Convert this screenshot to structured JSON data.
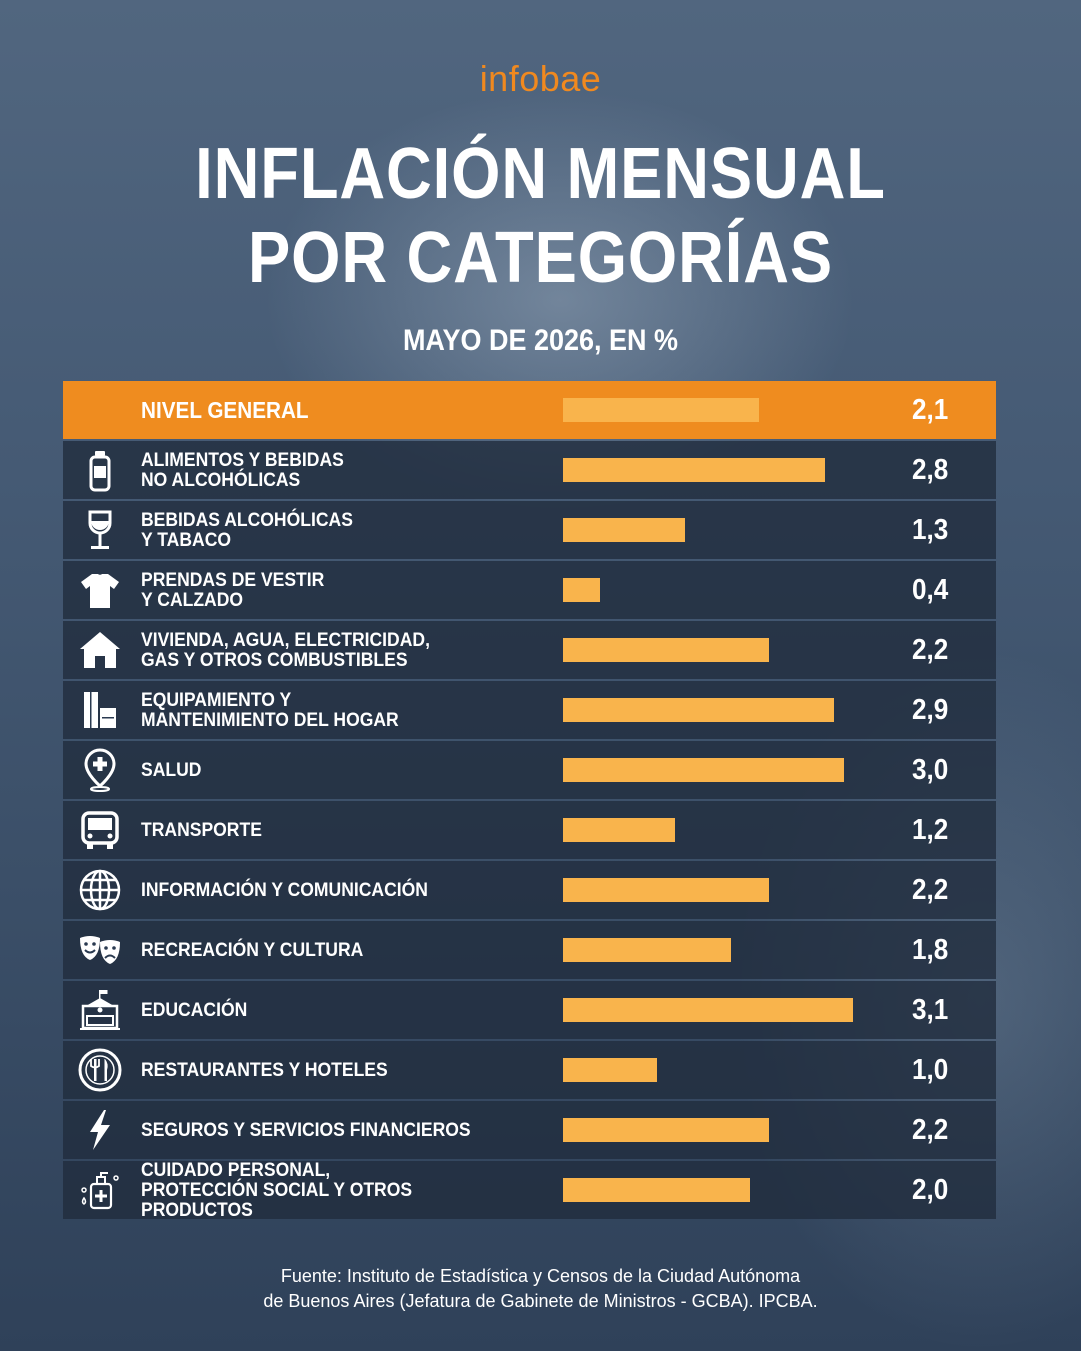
{
  "brand": "infobae",
  "title_line1": "INFLACIÓN MENSUAL",
  "title_line2": "POR CATEGORÍAS",
  "subtitle": "MAYO DE 2026, EN %",
  "source_line1": "Fuente: Instituto de Estadística y Censos de la Ciudad Autónoma",
  "source_line2": "de Buenos Aires (Jefatura de Gabinete de Ministros - GCBA). IPCBA.",
  "colors": {
    "accent": "#ef8c1f",
    "bar": "#f9b44c",
    "row_bg": "#202b3c",
    "text": "#ffffff"
  },
  "chart_data": {
    "type": "bar",
    "orientation": "horizontal",
    "title": "INFLACIÓN MENSUAL POR CATEGORÍAS",
    "subtitle": "MAYO DE 2026, EN %",
    "xlim": [
      0,
      3.1
    ],
    "categories": [
      {
        "lines": [
          "NIVEL GENERAL"
        ],
        "value": 2.1,
        "display": "2,1",
        "icon": "none",
        "highlight": true
      },
      {
        "lines": [
          "ALIMENTOS Y BEBIDAS",
          "NO ALCOHÓLICAS"
        ],
        "value": 2.8,
        "display": "2,8",
        "icon": "bottle-icon"
      },
      {
        "lines": [
          "BEBIDAS ALCOHÓLICAS",
          "Y TABACO"
        ],
        "value": 1.3,
        "display": "1,3",
        "icon": "wine-glass-icon"
      },
      {
        "lines": [
          "PRENDAS DE VESTIR",
          "Y CALZADO"
        ],
        "value": 0.4,
        "display": "0,4",
        "icon": "tshirt-icon"
      },
      {
        "lines": [
          "VIVIENDA, AGUA, ELECTRICIDAD,",
          "GAS Y OTROS COMBUSTIBLES"
        ],
        "value": 2.2,
        "display": "2,2",
        "icon": "house-icon"
      },
      {
        "lines": [
          "EQUIPAMIENTO Y",
          "MANTENIMIENTO DEL HOGAR"
        ],
        "value": 2.9,
        "display": "2,9",
        "icon": "furniture-icon"
      },
      {
        "lines": [
          "SALUD"
        ],
        "value": 3.0,
        "display": "3,0",
        "icon": "health-pin-icon"
      },
      {
        "lines": [
          "TRANSPORTE"
        ],
        "value": 1.2,
        "display": "1,2",
        "icon": "bus-icon"
      },
      {
        "lines": [
          "INFORMACIÓN Y COMUNICACIÓN"
        ],
        "value": 2.2,
        "display": "2,2",
        "icon": "globe-icon"
      },
      {
        "lines": [
          "RECREACIÓN Y CULTURA"
        ],
        "value": 1.8,
        "display": "1,8",
        "icon": "theater-masks-icon"
      },
      {
        "lines": [
          "EDUCACIÓN"
        ],
        "value": 3.1,
        "display": "3,1",
        "icon": "school-icon"
      },
      {
        "lines": [
          "RESTAURANTES Y HOTELES"
        ],
        "value": 1.0,
        "display": "1,0",
        "icon": "plate-cutlery-icon"
      },
      {
        "lines": [
          "SEGUROS Y SERVICIOS FINANCIEROS"
        ],
        "value": 2.2,
        "display": "2,2",
        "icon": "lightning-icon"
      },
      {
        "lines": [
          "CUIDADO PERSONAL,",
          "PROTECCIÓN SOCIAL Y OTROS PRODUCTOS"
        ],
        "value": 2.0,
        "display": "2,0",
        "icon": "personal-care-icon"
      }
    ]
  }
}
